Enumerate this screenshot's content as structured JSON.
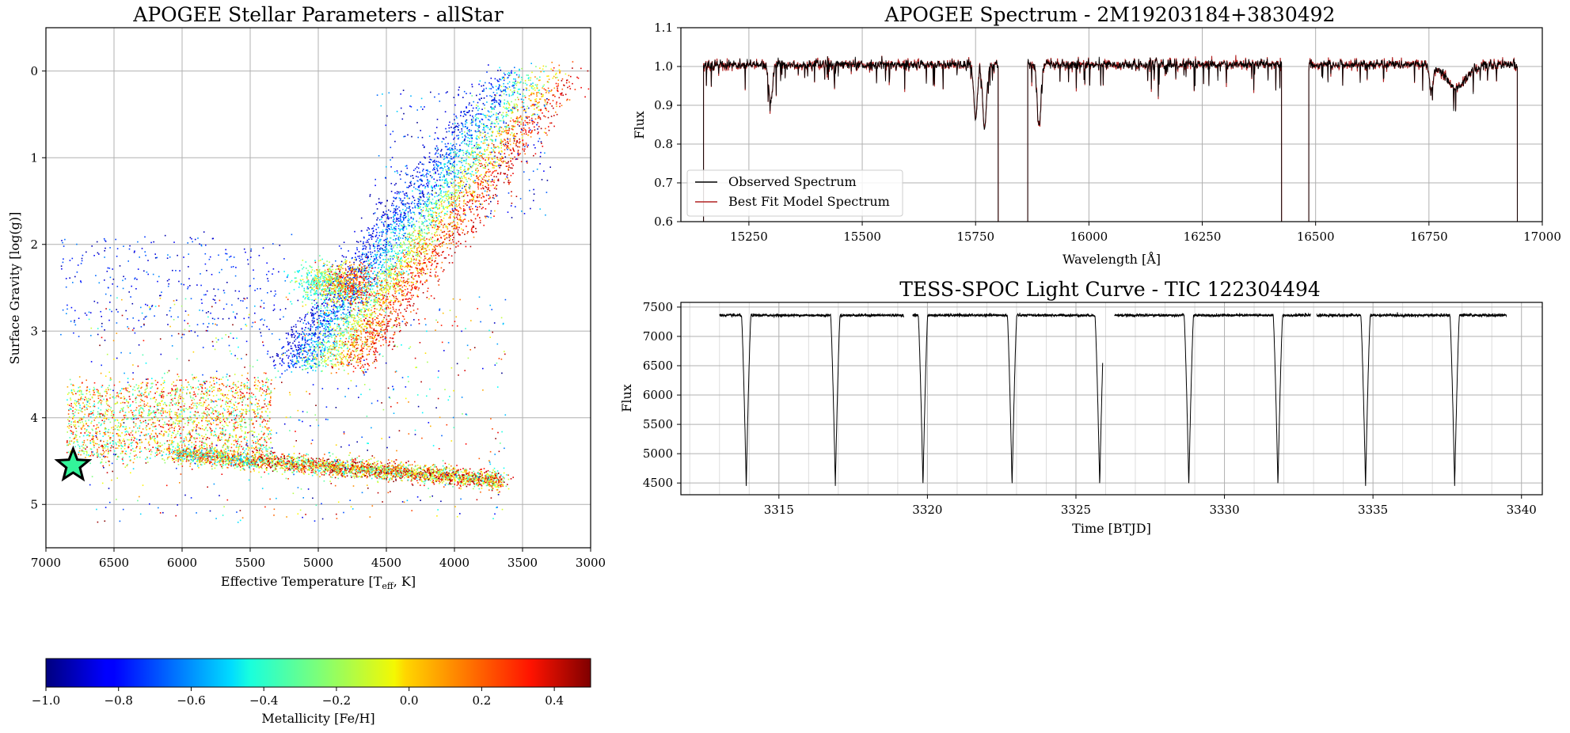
{
  "chart_data": [
    {
      "type": "scatter",
      "title": "APOGEE Stellar Parameters - allStar",
      "xlabel": "Effective Temperature [T",
      "xlabel_sub": "eff",
      "xlabel_tail": ", K]",
      "ylabel": "Surface Gravity [log(g)]",
      "xlim": [
        7000,
        3000
      ],
      "ylim": [
        5.5,
        -0.5
      ],
      "xticks": [
        7000,
        6500,
        6000,
        5500,
        5000,
        4500,
        4000,
        3500,
        3000
      ],
      "xtick_labels": [
        "7000",
        "6500",
        "6000",
        "5500",
        "5000",
        "4500",
        "4000",
        "3500",
        "3000"
      ],
      "yticks": [
        0,
        1,
        2,
        3,
        4,
        5
      ],
      "ytick_labels": [
        "0",
        "1",
        "2",
        "3",
        "4",
        "5"
      ],
      "grid": true,
      "colormap": "jet",
      "highlighted_star": {
        "teff": 6800,
        "logg": 4.55,
        "color": "#33f59a"
      },
      "colorbar": {
        "label": "Metallicity [Fe/H]",
        "range": [
          -1.0,
          0.5
        ],
        "ticks": [
          -1.0,
          -0.8,
          -0.6,
          -0.4,
          -0.2,
          0.0,
          0.2,
          0.4
        ],
        "tick_labels": [
          "−1.0",
          "−0.8",
          "−0.6",
          "−0.4",
          "−0.2",
          "0.0",
          "0.2",
          "0.4"
        ]
      }
    },
    {
      "type": "line",
      "title": "APOGEE Spectrum - 2M19203184+3830492",
      "xlabel": "Wavelength [Å]",
      "ylabel": "Flux",
      "xlim": [
        15100,
        17000
      ],
      "ylim": [
        0.6,
        1.1
      ],
      "xticks": [
        15250,
        15500,
        15750,
        16000,
        16250,
        16500,
        16750,
        17000
      ],
      "xtick_labels": [
        "15250",
        "15500",
        "15750",
        "16000",
        "16250",
        "16500",
        "16750",
        "17000"
      ],
      "yticks": [
        0.6,
        0.7,
        0.8,
        0.9,
        1.0,
        1.1
      ],
      "ytick_labels": [
        "0.6",
        "0.7",
        "0.8",
        "0.9",
        "1.0",
        "1.1"
      ],
      "grid": true,
      "legend_position": "lower-left",
      "chip_ranges": [
        [
          15150,
          15800
        ],
        [
          15865,
          16425
        ],
        [
          16485,
          16945
        ]
      ],
      "series": [
        {
          "name": "Observed Spectrum",
          "color": "#000000"
        },
        {
          "name": "Best Fit Model Spectrum",
          "color": "#b22222"
        }
      ]
    },
    {
      "type": "line",
      "title": "TESS-SPOC Light Curve - TIC 122304494",
      "xlabel": "Time [BTJD]",
      "ylabel": "Flux",
      "xlim": [
        3311.7,
        3340.7
      ],
      "ylim": [
        4300,
        7580
      ],
      "xticks": [
        3315,
        3320,
        3325,
        3330,
        3335,
        3340
      ],
      "xtick_labels": [
        "3315",
        "3320",
        "3325",
        "3330",
        "3335",
        "3340"
      ],
      "yticks": [
        4500,
        5000,
        5500,
        6000,
        6500,
        7000,
        7500
      ],
      "ytick_labels": [
        "4500",
        "5000",
        "5500",
        "6000",
        "6500",
        "7000",
        "7500"
      ],
      "grid": true,
      "baseline_flux": 7360,
      "eclipse_depth_flux": 4450,
      "eclipse_times": [
        3313.9,
        3316.9,
        3319.85,
        3322.85,
        3325.8,
        3328.8,
        3331.8,
        3334.75,
        3337.75
      ],
      "data_gaps": [
        [
          3319.2,
          3319.5
        ],
        [
          3325.9,
          3326.3
        ],
        [
          3332.9,
          3333.1
        ]
      ],
      "series": [
        {
          "color": "#000000"
        }
      ]
    }
  ]
}
